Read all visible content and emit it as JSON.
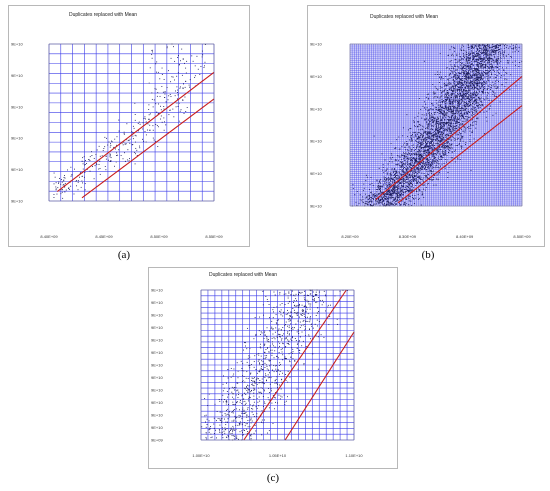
{
  "captions": [
    "(a)",
    "(b)",
    "(c)"
  ],
  "colors": {
    "grid": "#3a3ae8",
    "points": "#1a1a5a",
    "bands": "#c81e1e",
    "fill_b": "#5a5ad8"
  },
  "chart_data": [
    {
      "type": "scatter",
      "title": "Duplicates replaced with Mean",
      "xlabel": "",
      "ylabel": "",
      "x_ticks": [
        "8.40E+09",
        "8.45E+09",
        "8.50E+09",
        "8.55E+09"
      ],
      "y_ticks": [
        "9E+10",
        "9E+10",
        "9E+10",
        "9E+10",
        "9E+10",
        "9E+10"
      ],
      "xlim": [
        0,
        1
      ],
      "ylim": [
        0,
        1
      ],
      "grid": true,
      "point_density": "sparse",
      "band_lines": [
        {
          "x": [
            0.05,
            1.0
          ],
          "y": [
            0.06,
            0.82
          ]
        },
        {
          "x": [
            0.2,
            1.0
          ],
          "y": [
            0.02,
            0.65
          ]
        }
      ]
    },
    {
      "type": "scatter",
      "title": "Duplicates replaced with Mean",
      "xlabel": "",
      "ylabel": "",
      "x_ticks": [
        "8.20E+09",
        "8.30E+09",
        "8.40E+09",
        "8.50E+09"
      ],
      "y_ticks": [
        "9E+10",
        "9E+10",
        "9E+10",
        "9E+10",
        "9E+10",
        "9E+10"
      ],
      "xlim": [
        0,
        1
      ],
      "ylim": [
        0,
        1
      ],
      "grid": true,
      "point_density": "dense",
      "band_lines": [
        {
          "x": [
            0.15,
            1.0
          ],
          "y": [
            0.04,
            0.8
          ]
        },
        {
          "x": [
            0.28,
            1.0
          ],
          "y": [
            0.02,
            0.62
          ]
        }
      ]
    },
    {
      "type": "scatter",
      "title": "Duplicates replaced with Mean",
      "xlabel": "",
      "ylabel": "",
      "x_ticks": [
        "1.00E+10",
        "1.05E+10",
        "1.10E+10"
      ],
      "y_ticks": [
        "9E+09",
        "9E+10",
        "9E+10",
        "9E+10",
        "9E+10",
        "9E+10",
        "9E+10",
        "9E+10",
        "9E+10",
        "9E+10",
        "9E+10",
        "9E+10",
        "9E+10"
      ],
      "xlim": [
        0,
        1
      ],
      "ylim": [
        0,
        1
      ],
      "grid": true,
      "point_density": "medium",
      "band_lines": [
        {
          "x": [
            0.28,
            0.95
          ],
          "y": [
            0.0,
            1.0
          ]
        },
        {
          "x": [
            0.55,
            1.0
          ],
          "y": [
            0.0,
            0.72
          ]
        }
      ]
    }
  ]
}
